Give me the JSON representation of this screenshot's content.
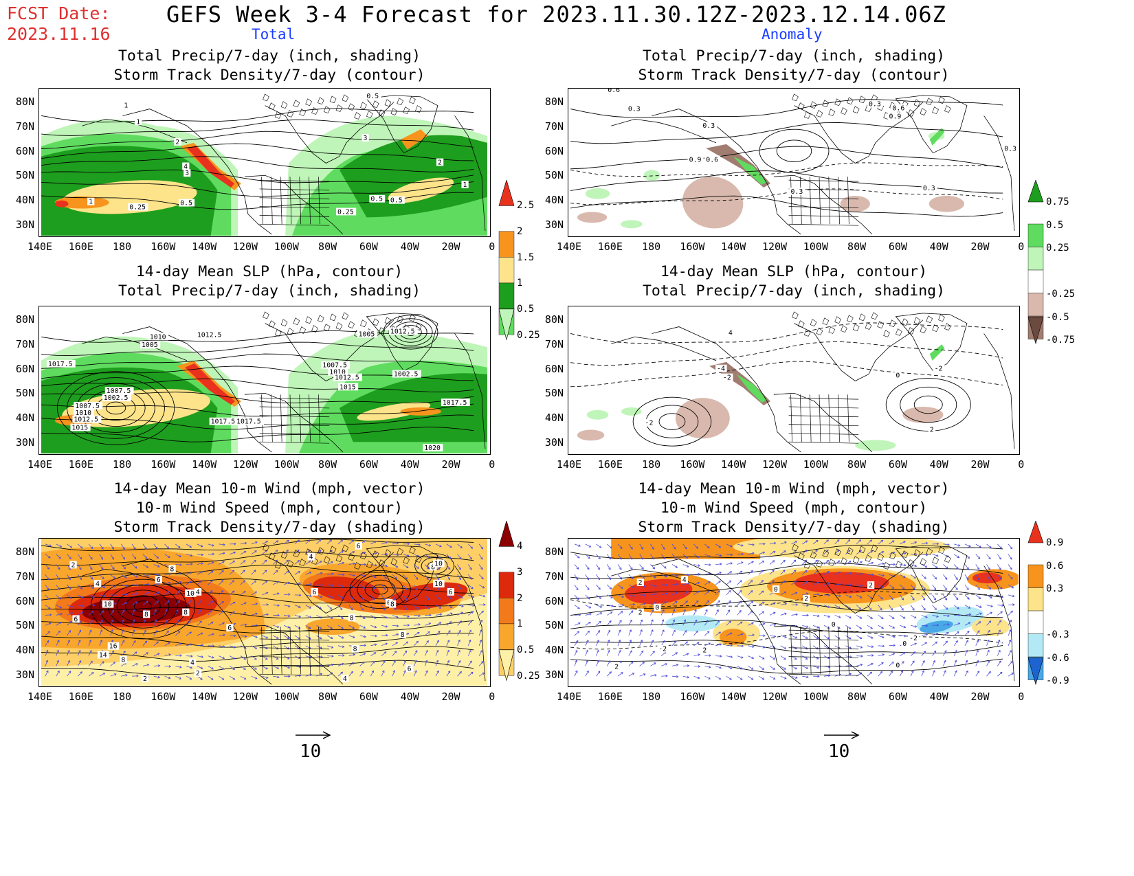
{
  "header": {
    "fcst_label": "FCST Date:",
    "fcst_date": "2023.11.16",
    "title": "GEFS Week 3-4 Forecast for 2023.11.30.12Z-2023.12.14.06Z",
    "col_total": "Total",
    "col_anomaly": "Anomaly"
  },
  "axes": {
    "lat_labels": [
      "80N",
      "70N",
      "60N",
      "50N",
      "40N",
      "30N"
    ],
    "lon_labels": [
      "140E",
      "160E",
      "180",
      "160W",
      "140W",
      "120W",
      "100W",
      "80W",
      "60W",
      "40W",
      "20W",
      "0"
    ]
  },
  "panels": {
    "p1": {
      "title1": "Total Precip/7-day (inch, shading)",
      "title2": "Storm Track Density/7-day (contour)",
      "contour_labels": [
        "1",
        "1",
        "2",
        "4",
        "3",
        "0.5",
        "1",
        "0.25",
        "0.5",
        "3",
        "2",
        "1",
        "0.5",
        "0.25",
        "0.5"
      ]
    },
    "p2": {
      "title1": "Total Precip/7-day (inch, shading)",
      "title2": "Storm Track Density/7-day (contour)",
      "contour_labels": [
        "0.6",
        "0.3",
        "0.3",
        "0.9",
        "0.6",
        "0.3",
        "0.3",
        "0.6",
        "0.9",
        "0.3",
        "0.3"
      ]
    },
    "p3": {
      "title1": "14-day Mean SLP (hPa, contour)",
      "title2": "Total Precip/7-day (inch, shading)",
      "contour_labels": [
        "1010",
        "1012.5",
        "1005",
        "1017.5",
        "1007.5",
        "1002.5",
        "1007.5",
        "1010",
        "1012.5",
        "1015",
        "1017.5",
        "1017.5",
        "1005",
        "1012.5",
        "1007.5",
        "1010",
        "1012.5",
        "1015",
        "1002.5",
        "1017.5",
        "1020"
      ]
    },
    "p4": {
      "title1": "14-day Mean SLP (hPa, contour)",
      "title2": "Total Precip/7-day (inch, shading)",
      "contour_labels": [
        "4",
        "-4",
        "-2",
        "-2",
        "0",
        "-2",
        "2"
      ]
    },
    "p5": {
      "title1": "14-day Mean 10-m Wind (mph, vector)",
      "title2": "10-m Wind Speed (mph, contour)",
      "title3": "Storm Track Density/7-day (shading)",
      "contour_labels": [
        "2",
        "4",
        "6",
        "8",
        "10",
        "8",
        "6",
        "8",
        "10",
        "6",
        "4",
        "16",
        "14",
        "8",
        "4",
        "2",
        "6",
        "6",
        "4",
        "8",
        "6",
        "8",
        "10",
        "6",
        "8",
        "10",
        "8",
        "6",
        "4",
        "2",
        "8"
      ]
    },
    "p6": {
      "title1": "14-day Mean 10-m Wind (mph, vector)",
      "title2": "10-m Wind Speed (mph, contour)",
      "title3": "Storm Track Density/7-day (shading)",
      "contour_labels": [
        "2",
        "0",
        "2",
        "4",
        "-2",
        "2",
        "0",
        "2",
        "0",
        "2",
        "0",
        "-2",
        "0",
        "2"
      ]
    }
  },
  "colorbars": {
    "precip_total": {
      "labels": [
        "2.5",
        "2",
        "1.5",
        "1",
        "0.5",
        "0.25"
      ],
      "colors": [
        "#e8321e",
        "#f7941d",
        "#fde38a",
        "#1e9e1e",
        "#5fdc5f",
        "#bff5b8"
      ]
    },
    "precip_anom": {
      "labels": [
        "0.75",
        "0.5",
        "0.25",
        "-0.25",
        "-0.5",
        "-0.75"
      ],
      "colors": [
        "#1e9e1e",
        "#5fdc5f",
        "#bff5b8",
        "#ffffff",
        "#d9b9ad",
        "#a07d70",
        "#6b4a3f"
      ]
    },
    "storm_total": {
      "labels": [
        "4",
        "3",
        "2",
        "1",
        "0.5",
        "0.25"
      ],
      "colors": [
        "#8b0000",
        "#dd2a0c",
        "#f37a1a",
        "#f9a62d",
        "#fdcf66",
        "#fff0a8"
      ]
    },
    "storm_anom": {
      "labels": [
        "0.9",
        "0.6",
        "0.3",
        "-0.3",
        "-0.6",
        "-0.9"
      ],
      "colors": [
        "#e8321e",
        "#f7941d",
        "#fde38a",
        "#ffffff",
        "#b3e9f5",
        "#4aa8e6",
        "#1e64d0"
      ]
    }
  },
  "vector_ref": {
    "value": "10",
    "value2": "10"
  },
  "colors": {
    "fcst": "#e03030",
    "column_header": "#1a3cff",
    "vector": "#4b4bdc"
  }
}
